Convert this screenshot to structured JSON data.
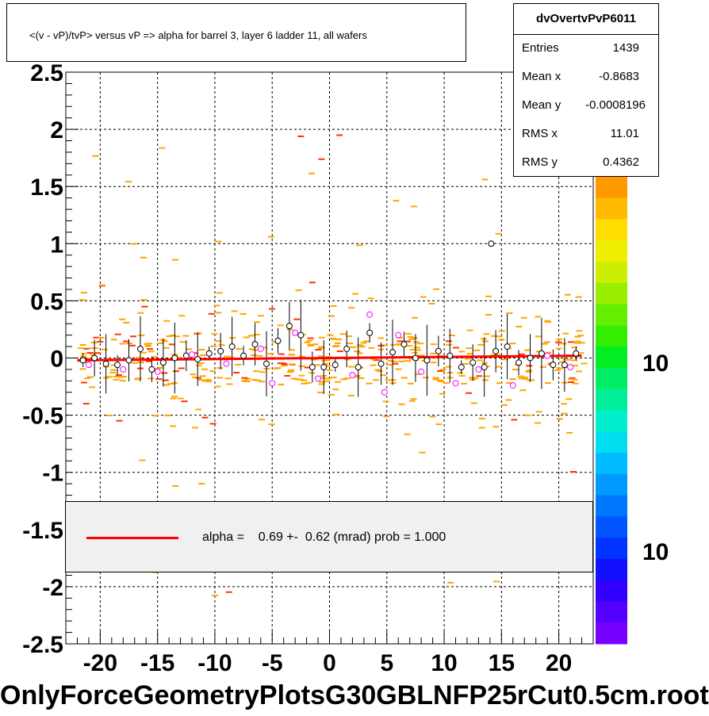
{
  "header": {
    "title": "<(v - vP)/tvP> versus   vP => alpha for barrel 3, layer 6 ladder 11, all wafers"
  },
  "stats": {
    "name": "dvOvertvPvP6011",
    "rows": [
      {
        "label": "Entries",
        "value": "1439"
      },
      {
        "label": "Mean x",
        "value": "-0.8683"
      },
      {
        "label": "Mean y",
        "value": "-0.0008196"
      },
      {
        "label": "RMS x",
        "value": "11.01"
      },
      {
        "label": "RMS y",
        "value": "0.4362"
      }
    ]
  },
  "fit": {
    "text": "alpha =    0.69 +-  0.62 (mrad) prob = 1.000",
    "line_color": "#ff0000"
  },
  "footer": {
    "text": "OnlyForceGeometryPlotsG30GBLNFP25rCut0.5cm.root"
  },
  "colors": {
    "histogram_bins": "#ffa500",
    "fit_line": "#ff0000",
    "profile_points": "#000000",
    "alt_points": "#ff00ff"
  },
  "chart_data": {
    "type": "scatter",
    "title": "<(v - vP)/tvP> versus   vP => alpha for barrel 3, layer 6 ladder 11, all wafers",
    "xlabel": "",
    "ylabel": "",
    "xlim": [
      -23,
      23
    ],
    "ylim": [
      -2.5,
      2.5
    ],
    "grid": true,
    "x_ticks": [
      "-20",
      "-15",
      "-10",
      "-5",
      "0",
      "5",
      "10",
      "15",
      "20"
    ],
    "x_tick_values": [
      -20,
      -15,
      -10,
      -5,
      0,
      5,
      10,
      15,
      20
    ],
    "y_ticks": [
      "2.5",
      "2",
      "1.5",
      "1",
      "0.5",
      "0",
      "-0.5",
      "-1",
      "-1.5",
      "-2",
      "-2.5"
    ],
    "y_tick_values": [
      2.5,
      2,
      1.5,
      1,
      0.5,
      0,
      -0.5,
      -1,
      -1.5,
      -2,
      -2.5
    ],
    "palette_labels": [
      "10",
      "10"
    ],
    "fit_line": {
      "x": [
        -22,
        22
      ],
      "y": [
        -0.02,
        0.02
      ]
    },
    "profile_points": [
      {
        "x": -21.5,
        "y": -0.02
      },
      {
        "x": -20.5,
        "y": 0.0
      },
      {
        "x": -19.5,
        "y": -0.05
      },
      {
        "x": -18.5,
        "y": -0.06
      },
      {
        "x": -17.5,
        "y": -0.02
      },
      {
        "x": -16.5,
        "y": 0.08
      },
      {
        "x": -15.5,
        "y": -0.1
      },
      {
        "x": -14.5,
        "y": -0.04
      },
      {
        "x": -13.5,
        "y": 0.0
      },
      {
        "x": -12.5,
        "y": 0.02
      },
      {
        "x": -11.5,
        "y": -0.01
      },
      {
        "x": -10.5,
        "y": 0.04
      },
      {
        "x": -9.5,
        "y": 0.06
      },
      {
        "x": -8.5,
        "y": 0.1
      },
      {
        "x": -7.5,
        "y": 0.02
      },
      {
        "x": -6.5,
        "y": 0.12
      },
      {
        "x": -5.5,
        "y": -0.05
      },
      {
        "x": -4.5,
        "y": 0.15
      },
      {
        "x": -3.5,
        "y": 0.28
      },
      {
        "x": -2.5,
        "y": 0.2
      },
      {
        "x": -1.5,
        "y": -0.08
      },
      {
        "x": -0.5,
        "y": -0.08
      },
      {
        "x": 0.5,
        "y": -0.06
      },
      {
        "x": 1.5,
        "y": 0.08
      },
      {
        "x": 2.5,
        "y": -0.08
      },
      {
        "x": 3.5,
        "y": 0.22
      },
      {
        "x": 4.5,
        "y": -0.05
      },
      {
        "x": 5.5,
        "y": 0.05
      },
      {
        "x": 6.5,
        "y": 0.12
      },
      {
        "x": 7.5,
        "y": 0.0
      },
      {
        "x": 8.5,
        "y": -0.02
      },
      {
        "x": 9.5,
        "y": 0.06
      },
      {
        "x": 10.5,
        "y": 0.02
      },
      {
        "x": 11.5,
        "y": -0.08
      },
      {
        "x": 12.5,
        "y": -0.04
      },
      {
        "x": 13.5,
        "y": -0.08
      },
      {
        "x": 14.1,
        "y": 1.0
      },
      {
        "x": 14.5,
        "y": 0.06
      },
      {
        "x": 15.5,
        "y": 0.1
      },
      {
        "x": 16.5,
        "y": -0.04
      },
      {
        "x": 17.5,
        "y": 0.0
      },
      {
        "x": 18.5,
        "y": 0.04
      },
      {
        "x": 19.5,
        "y": -0.06
      },
      {
        "x": 20.5,
        "y": -0.06
      },
      {
        "x": 21.5,
        "y": 0.04
      }
    ],
    "alt_points": [
      {
        "x": -21.0,
        "y": -0.06
      },
      {
        "x": -18.0,
        "y": -0.1
      },
      {
        "x": -15.0,
        "y": -0.12
      },
      {
        "x": -12.0,
        "y": 0.03
      },
      {
        "x": -9.0,
        "y": -0.05
      },
      {
        "x": -6.0,
        "y": 0.08
      },
      {
        "x": -5.0,
        "y": -0.22
      },
      {
        "x": -3.0,
        "y": 0.22
      },
      {
        "x": -1.0,
        "y": -0.18
      },
      {
        "x": 2.0,
        "y": -0.15
      },
      {
        "x": 3.5,
        "y": 0.38
      },
      {
        "x": 4.8,
        "y": -0.3
      },
      {
        "x": 6.0,
        "y": 0.2
      },
      {
        "x": 8.0,
        "y": -0.12
      },
      {
        "x": 11.0,
        "y": -0.22
      },
      {
        "x": 13.0,
        "y": -0.1
      },
      {
        "x": 16.0,
        "y": -0.24
      },
      {
        "x": 19.0,
        "y": 0.02
      },
      {
        "x": 21.0,
        "y": -0.08
      }
    ]
  }
}
